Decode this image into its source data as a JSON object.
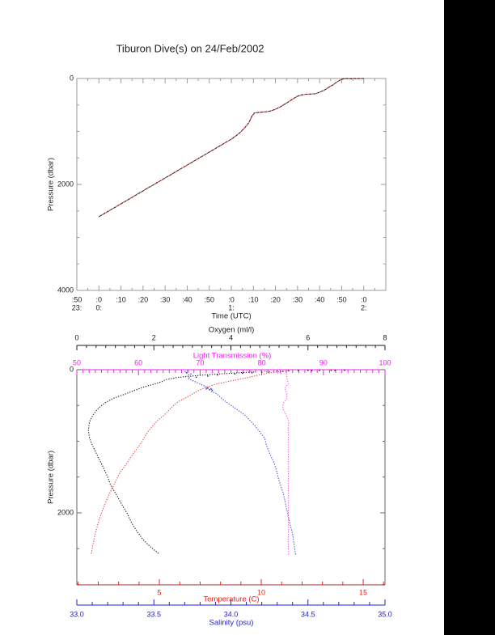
{
  "colors": {
    "background": "#ffffff",
    "frame": "#999999",
    "black_region": "#000000",
    "oxygen": "#1a1a1a",
    "light_transmission": "#ee22ee",
    "temperature": "#ee2222",
    "salinity": "#2222cc",
    "dive_trace_red": "#b22222",
    "dive_trace_black": "#111111"
  },
  "chart_data": [
    {
      "type": "line",
      "id": "dive-depth-timeseries",
      "title": "Tiburon Dive(s) on 24/Feb/2002",
      "xlabel": "Time (UTC)",
      "ylabel": "Pressure (dbar)",
      "x_range_minutes_from_2350": [
        0,
        140
      ],
      "y_range": [
        0,
        4000
      ],
      "y_ticks": [
        0,
        2000,
        4000
      ],
      "x_ticks": [
        {
          "t": 0,
          "label": ":50",
          "hour": "23:"
        },
        {
          "t": 10,
          "label": ":0",
          "hour": "0:"
        },
        {
          "t": 20,
          "label": ":10",
          "hour": ""
        },
        {
          "t": 30,
          "label": ":20",
          "hour": ""
        },
        {
          "t": 40,
          "label": ":30",
          "hour": ""
        },
        {
          "t": 50,
          "label": ":40",
          "hour": ""
        },
        {
          "t": 60,
          "label": ":50",
          "hour": ""
        },
        {
          "t": 70,
          "label": ":0",
          "hour": "1:"
        },
        {
          "t": 80,
          "label": ":10",
          "hour": ""
        },
        {
          "t": 90,
          "label": ":20",
          "hour": ""
        },
        {
          "t": 100,
          "label": ":30",
          "hour": ""
        },
        {
          "t": 110,
          "label": ":40",
          "hour": ""
        },
        {
          "t": 120,
          "label": ":50",
          "hour": ""
        },
        {
          "t": 130,
          "label": ":0",
          "hour": "2:"
        }
      ],
      "series": [
        {
          "name": "vehicle-ascent-trace",
          "colors": [
            "#b22222",
            "#111111"
          ],
          "points_time_pressure": [
            [
              9.9,
              2610
            ],
            [
              12,
              2560
            ],
            [
              14,
              2512
            ],
            [
              16,
              2462
            ],
            [
              18,
              2415
            ],
            [
              20,
              2365
            ],
            [
              22,
              2318
            ],
            [
              24,
              2268
            ],
            [
              26,
              2220
            ],
            [
              28,
              2170
            ],
            [
              30,
              2122
            ],
            [
              32,
              2072
            ],
            [
              34,
              2025
            ],
            [
              36,
              1975
            ],
            [
              38,
              1928
            ],
            [
              40,
              1878
            ],
            [
              42,
              1830
            ],
            [
              44,
              1780
            ],
            [
              46,
              1732
            ],
            [
              48,
              1682
            ],
            [
              50,
              1635
            ],
            [
              52,
              1585
            ],
            [
              54,
              1537
            ],
            [
              56,
              1487
            ],
            [
              58,
              1440
            ],
            [
              60,
              1390
            ],
            [
              62,
              1342
            ],
            [
              64,
              1292
            ],
            [
              66,
              1244
            ],
            [
              68,
              1194
            ],
            [
              70,
              1146
            ],
            [
              72,
              1085
            ],
            [
              74,
              1020
            ],
            [
              76,
              935
            ],
            [
              78,
              830
            ],
            [
              79.5,
              700
            ],
            [
              80.5,
              652
            ],
            [
              82,
              643
            ],
            [
              84,
              635
            ],
            [
              86,
              628
            ],
            [
              88,
              612
            ],
            [
              90,
              580
            ],
            [
              92,
              540
            ],
            [
              94,
              490
            ],
            [
              96,
              440
            ],
            [
              98,
              385
            ],
            [
              100,
              335
            ],
            [
              102,
              310
            ],
            [
              104,
              298
            ],
            [
              106,
              293
            ],
            [
              108,
              289
            ],
            [
              110,
              260
            ],
            [
              112,
              225
            ],
            [
              114,
              170
            ],
            [
              116,
              122
            ],
            [
              118,
              62
            ],
            [
              119.5,
              25
            ],
            [
              121,
              5
            ],
            [
              122.5,
              2
            ],
            [
              124,
              6
            ],
            [
              125.5,
              1
            ],
            [
              127,
              4
            ],
            [
              128.5,
              1
            ],
            [
              130,
              2
            ]
          ]
        }
      ]
    },
    {
      "type": "line",
      "id": "ctd-depth-profiles",
      "ylabel": "Pressure (dbar)",
      "y_range": [
        0,
        3006
      ],
      "y_ticks": [
        0,
        2000
      ],
      "axes": {
        "oxygen": {
          "label": "Oxygen (ml/l)",
          "color": "#1a1a1a",
          "range": [
            0,
            8
          ],
          "ticks": [
            0,
            2,
            4,
            6,
            8
          ]
        },
        "light": {
          "label": "Light Transmission (%)",
          "color": "#ee22ee",
          "range": [
            50,
            100
          ],
          "ticks": [
            50,
            60,
            70,
            80,
            90,
            100
          ]
        },
        "temperature": {
          "label": "Temperature (C)",
          "color": "#ee2222",
          "range": [
            0.95,
            16.07
          ],
          "ticks": [
            5,
            10,
            15
          ]
        },
        "salinity": {
          "label": "Salinity (psu)",
          "color": "#2222cc",
          "range": [
            33.0,
            35.0
          ],
          "ticks": [
            "33.0",
            "33.5",
            "34.0",
            "34.5",
            "35.0"
          ]
        }
      },
      "series": [
        {
          "name": "oxygen-profile",
          "axis": "oxygen",
          "color": "#1a1a1a",
          "points": [
            [
              30,
              4.6
            ],
            [
              45,
              4.15
            ],
            [
              60,
              3.7
            ],
            [
              79,
              3.2
            ],
            [
              95,
              2.85
            ],
            [
              113,
              2.56
            ],
            [
              140,
              2.3
            ],
            [
              170,
              2.2
            ],
            [
              203,
              2.0
            ],
            [
              240,
              1.75
            ],
            [
              280,
              1.55
            ],
            [
              316,
              1.37
            ],
            [
              360,
              1.15
            ],
            [
              400,
              0.95
            ],
            [
              463,
              0.73
            ],
            [
              520,
              0.6
            ],
            [
              575,
              0.5
            ],
            [
              633,
              0.42
            ],
            [
              700,
              0.35
            ],
            [
              760,
              0.32
            ],
            [
              848,
              0.3
            ],
            [
              950,
              0.33
            ],
            [
              1028,
              0.38
            ],
            [
              1130,
              0.47
            ],
            [
              1250,
              0.58
            ],
            [
              1380,
              0.7
            ],
            [
              1500,
              0.8
            ],
            [
              1616,
              0.88
            ],
            [
              1750,
              1.03
            ],
            [
              1876,
              1.16
            ],
            [
              2000,
              1.3
            ],
            [
              2147,
              1.43
            ],
            [
              2250,
              1.55
            ],
            [
              2373,
              1.72
            ],
            [
              2470,
              1.9
            ],
            [
              2576,
              2.14
            ]
          ],
          "scatter": [
            [
              8,
              6.95
            ],
            [
              9,
              6.6
            ],
            [
              10,
              6.3
            ],
            [
              11,
              6.0
            ],
            [
              12,
              6.7
            ],
            [
              13,
              5.75
            ],
            [
              14,
              6.1
            ],
            [
              16,
              5.5
            ],
            [
              18,
              5.2
            ],
            [
              30,
              5.0
            ],
            [
              45,
              4.55
            ],
            [
              60,
              4.1
            ],
            [
              75,
              3.65
            ],
            [
              90,
              3.4
            ],
            [
              105,
              3.1
            ],
            [
              50,
              4.3
            ],
            [
              35,
              4.8
            ],
            [
              22,
              5.35
            ]
          ]
        },
        {
          "name": "temperature-profile",
          "axis": "temperature",
          "color": "#e84545",
          "points": [
            [
              6,
              11.33
            ],
            [
              12,
              11.3
            ],
            [
              20,
              11.25
            ],
            [
              34,
              10.67
            ],
            [
              50,
              10.3
            ],
            [
              68,
              10.0
            ],
            [
              85,
              9.7
            ],
            [
              102,
              9.48
            ],
            [
              130,
              9.0
            ],
            [
              160,
              8.45
            ],
            [
              200,
              7.8
            ],
            [
              250,
              7.25
            ],
            [
              300,
              6.85
            ],
            [
              373,
              6.43
            ],
            [
              450,
              5.9
            ],
            [
              520,
              5.63
            ],
            [
              633,
              5.24
            ],
            [
              700,
              4.95
            ],
            [
              768,
              4.72
            ],
            [
              880,
              4.4
            ],
            [
              1017,
              4.13
            ],
            [
              1120,
              3.85
            ],
            [
              1243,
              3.55
            ],
            [
              1350,
              3.3
            ],
            [
              1446,
              3.05
            ],
            [
              1600,
              2.78
            ],
            [
              1763,
              2.5
            ],
            [
              1930,
              2.25
            ],
            [
              2090,
              2.05
            ],
            [
              2294,
              1.85
            ],
            [
              2440,
              1.74
            ],
            [
              2588,
              1.65
            ]
          ],
          "scatter": []
        },
        {
          "name": "salinity-profile",
          "axis": "salinity",
          "color": "#4444dd",
          "points": [
            [
              20,
              33.7
            ],
            [
              60,
              33.72
            ],
            [
              100,
              33.74
            ],
            [
              124,
              33.72
            ],
            [
              160,
              33.76
            ],
            [
              200,
              33.8
            ],
            [
              240,
              33.84
            ],
            [
              265,
              33.86
            ],
            [
              285,
              33.865
            ],
            [
              300,
              33.87
            ],
            [
              339,
              33.91
            ],
            [
              400,
              33.94
            ],
            [
              452,
              33.97
            ],
            [
              542,
              34.03
            ],
            [
              633,
              34.09
            ],
            [
              746,
              34.14
            ],
            [
              847,
              34.18
            ],
            [
              960,
              34.22
            ],
            [
              1051,
              34.23
            ],
            [
              1164,
              34.25
            ],
            [
              1300,
              34.28
            ],
            [
              1440,
              34.3
            ],
            [
              1537,
              34.31
            ],
            [
              1729,
              34.34
            ],
            [
              1932,
              34.36
            ],
            [
              2124,
              34.38
            ],
            [
              2294,
              34.4
            ],
            [
              2441,
              34.41
            ],
            [
              2588,
              34.42
            ]
          ],
          "scatter": [
            [
              255,
              33.85
            ],
            [
              265,
              33.87
            ],
            [
              270,
              33.84
            ],
            [
              280,
              33.86
            ],
            [
              290,
              33.88
            ],
            [
              275,
              33.875
            ],
            [
              262,
              33.845
            ],
            [
              20,
              33.72
            ],
            [
              40,
              33.71
            ],
            [
              60,
              33.74
            ]
          ]
        },
        {
          "name": "light-transmission-profile",
          "axis": "light",
          "color": "#f060e0",
          "points": [
            [
              23,
              83.9
            ],
            [
              60,
              84.0
            ],
            [
              124,
              84.1
            ],
            [
              200,
              84.3
            ],
            [
              260,
              83.7
            ],
            [
              320,
              84.0
            ],
            [
              400,
              84.1
            ],
            [
              470,
              83.5
            ],
            [
              542,
              83.4
            ],
            [
              600,
              83.8
            ],
            [
              660,
              84.1
            ],
            [
              734,
              84.4
            ],
            [
              800,
              84.3
            ],
            [
              900,
              84.35
            ],
            [
              1000,
              84.3
            ],
            [
              1100,
              84.35
            ],
            [
              1200,
              84.3
            ],
            [
              1400,
              84.35
            ],
            [
              1600,
              84.3
            ],
            [
              1800,
              84.35
            ],
            [
              2000,
              84.3
            ],
            [
              2200,
              84.35
            ],
            [
              2400,
              84.3
            ],
            [
              2588,
              84.35
            ]
          ],
          "scatter": [
            [
              8,
              78.2
            ],
            [
              12,
              79.0
            ],
            [
              16,
              79.8
            ],
            [
              20,
              80.5
            ],
            [
              26,
              81.2
            ],
            [
              33,
              81.9
            ],
            [
              42,
              82.6
            ],
            [
              55,
              83.1
            ],
            [
              10,
              77.6
            ],
            [
              30,
              80.8
            ]
          ]
        }
      ]
    }
  ]
}
